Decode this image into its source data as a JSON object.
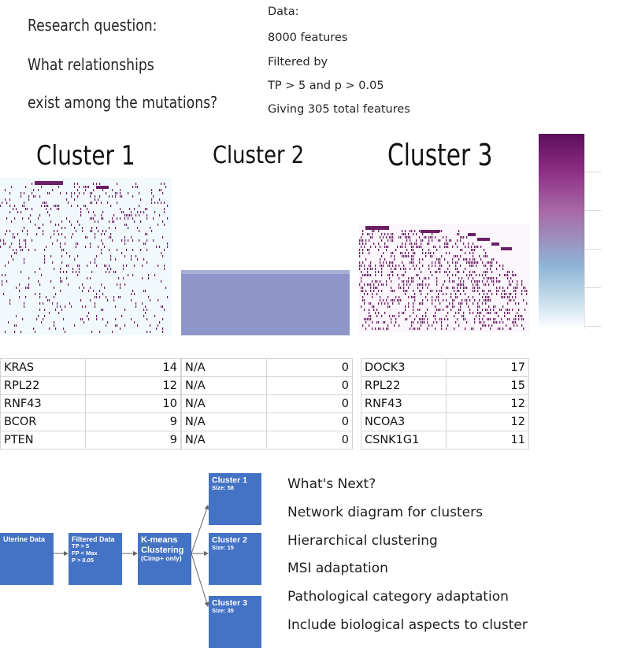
{
  "research": {
    "lines": [
      "Research question:",
      "What relationships",
      "exist among the mutations?"
    ]
  },
  "data_info": {
    "lines": [
      "Data:",
      "8000 features",
      "Filtered by",
      "TP > 5 and p > 0.05",
      "Giving 305 total features"
    ]
  },
  "clusters": [
    {
      "title": "Cluster 1",
      "genes": [
        {
          "name": "KRAS",
          "count": "14"
        },
        {
          "name": "RPL22",
          "count": "12"
        },
        {
          "name": "RNF43",
          "count": "10"
        },
        {
          "name": "BCOR",
          "count": "9"
        },
        {
          "name": "PTEN",
          "count": "9"
        }
      ]
    },
    {
      "title": "Cluster 2",
      "genes": [
        {
          "name": "N/A",
          "count": "0"
        },
        {
          "name": "N/A",
          "count": "0"
        },
        {
          "name": "N/A",
          "count": "0"
        },
        {
          "name": "N/A",
          "count": "0"
        },
        {
          "name": "N/A",
          "count": "0"
        }
      ]
    },
    {
      "title": "Cluster 3",
      "genes": [
        {
          "name": "DOCK3",
          "count": "17"
        },
        {
          "name": "RPL22",
          "count": "15"
        },
        {
          "name": "RNF43",
          "count": "12"
        },
        {
          "name": "NCOA3",
          "count": "12"
        },
        {
          "name": "CSNK1G1",
          "count": "11"
        }
      ]
    }
  ],
  "colors": {
    "heatmap_mark": "#6b1f66",
    "heatmap_bg1": "#f2f9fc",
    "heatmap_bg3": "#fbf6fb",
    "cluster2_fill": "#8e95c8",
    "flow_box": "#4472c4"
  },
  "flow": {
    "uterine": {
      "title": "Uterine Data"
    },
    "filtered": {
      "title": "Filtered Data",
      "lines": [
        "TP > 5",
        "FP < Max",
        "P > 0.05"
      ]
    },
    "kmeans": {
      "title": "K-means Clustering",
      "sub": "(Cimp+ only)"
    },
    "clusters": [
      {
        "title": "Cluster 1",
        "size": "Size: 58"
      },
      {
        "title": "Cluster 2",
        "size": "Size: 15"
      },
      {
        "title": "Cluster 3",
        "size": "Size: 35"
      }
    ]
  },
  "next": {
    "lines": [
      "What's Next?",
      "Network diagram for clusters",
      "Hierarchical clustering",
      "MSI adaptation",
      "Pathological category adaptation",
      "Include biological aspects to cluster"
    ]
  }
}
